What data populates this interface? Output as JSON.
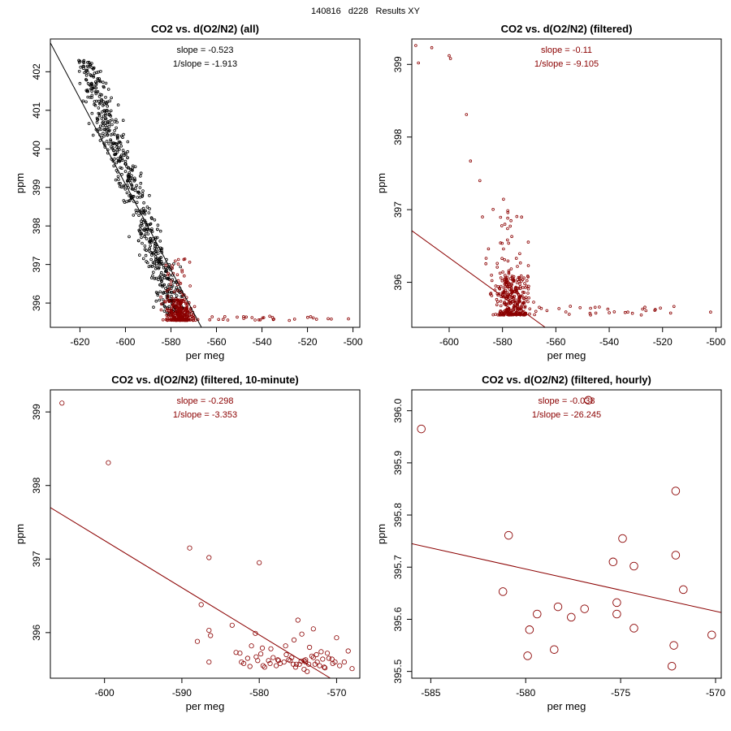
{
  "page_title": "140816   d228   Results XY",
  "colors": {
    "all": "#000000",
    "filtered": "#8b0000",
    "axes": "#000000"
  },
  "chart_data": [
    {
      "type": "scatter",
      "title": "CO2 vs. d(O2/N2) (all)",
      "xlabel": "per meg",
      "ylabel": "ppm",
      "xlim": [
        -633,
        -497
      ],
      "ylim": [
        395.37,
        402.85
      ],
      "xticks": [
        -620,
        -600,
        -580,
        -560,
        -540,
        -520,
        -500
      ],
      "yticks": [
        396,
        397,
        398,
        399,
        400,
        401,
        402
      ],
      "annotations": [
        "slope = -0.523",
        "1/slope = -1.913"
      ],
      "annotation_color": "#000000",
      "fit_line": {
        "x": [
          -633,
          -566.6
        ],
        "y": [
          402.75,
          395.37
        ],
        "color": "#000000"
      },
      "point_size": "small",
      "series": [
        {
          "name": "all",
          "color": "#000000",
          "generated": "dense_all",
          "count": 600
        },
        {
          "name": "filtered",
          "color": "#8b0000",
          "generated": "dense_filtered",
          "count": 320
        }
      ]
    },
    {
      "type": "scatter",
      "title": "CO2 vs. d(O2/N2) (filtered)",
      "xlabel": "per meg",
      "ylabel": "ppm",
      "xlim": [
        -614,
        -498
      ],
      "ylim": [
        395.38,
        399.35
      ],
      "xticks": [
        -600,
        -580,
        -560,
        -540,
        -520,
        -500
      ],
      "yticks": [
        396,
        397,
        398,
        399
      ],
      "annotations": [
        "slope = -0.11",
        "1/slope = -9.105"
      ],
      "annotation_color": "#8b0000",
      "fit_line": {
        "x": [
          -614,
          -564
        ],
        "y": [
          396.71,
          395.38
        ],
        "color": "#8b0000"
      },
      "point_size": "small",
      "series": [
        {
          "name": "filtered",
          "color": "#8b0000",
          "generated": "dense_filtered",
          "count": 380,
          "x": [
            -612.5,
            -611.5,
            -606.5,
            -600,
            -599.5,
            -593.5,
            -592,
            -588.5,
            -587.5
          ],
          "y": [
            399.26,
            399.02,
            399.23,
            399.12,
            399.08,
            398.31,
            397.67,
            397.4,
            396.9
          ]
        }
      ]
    },
    {
      "type": "scatter",
      "title": "CO2 vs. d(O2/N2) (filtered, 10-minute)",
      "xlabel": "per meg",
      "ylabel": "ppm",
      "xlim": [
        -607,
        -567
      ],
      "ylim": [
        395.38,
        399.3
      ],
      "xticks": [
        -600,
        -590,
        -580,
        -570
      ],
      "yticks": [
        396,
        397,
        398,
        399
      ],
      "annotations": [
        "slope = -0.298",
        "1/slope = -3.353"
      ],
      "annotation_color": "#8b0000",
      "fit_line": {
        "x": [
          -607,
          -570.8
        ],
        "y": [
          397.7,
          395.38
        ],
        "color": "#8b0000"
      },
      "point_size": "medium",
      "series": [
        {
          "name": "filtered, 10-minute",
          "color": "#8b0000",
          "x": [
            -605.5,
            -599.5,
            -589,
            -586.5,
            -580,
            -587.5,
            -588,
            -586.5,
            -586.3,
            -586.5,
            -583.5,
            -582.5,
            -581.5,
            -580.5,
            -579.5,
            -578.5,
            -577.5,
            -576.5,
            -575.5,
            -575,
            -574.5,
            -574,
            -573.5,
            -573,
            -572.5,
            -572,
            -571.5,
            -571,
            -570.5,
            -570,
            -569,
            -568.5,
            -568,
            -582,
            -581,
            -580.2,
            -579.3,
            -578.2,
            -577.3,
            -576.2,
            -575.2,
            -574.2,
            -573.2,
            -572.2,
            -571.2,
            -570.2,
            -579.8,
            -578.8,
            -577.8,
            -576.8,
            -575.8,
            -574.8,
            -573.8,
            -572.8,
            -571.8,
            -583,
            -582.3,
            -581.2,
            -580.4,
            -579.6,
            -578.6,
            -577.6,
            -576.6,
            -575.6,
            -574.6,
            -573.6,
            -572.6,
            -571.6,
            -570.6,
            -569.6,
            -576,
            -574,
            -573,
            -575.3,
            -574.2
          ],
          "y": [
            399.12,
            398.31,
            397.15,
            397.02,
            396.95,
            396.38,
            395.88,
            396.03,
            395.96,
            395.6,
            396.1,
            395.72,
            395.65,
            395.99,
            395.55,
            395.78,
            395.62,
            395.7,
            395.9,
            396.17,
            395.98,
            395.63,
            395.8,
            396.05,
            395.6,
            395.74,
            395.52,
            395.65,
            395.58,
            395.93,
            395.6,
            395.75,
            395.51,
            395.58,
            395.82,
            395.62,
            395.53,
            395.66,
            395.58,
            395.63,
            395.57,
            395.62,
            395.68,
            395.55,
            395.72,
            395.6,
            395.71,
            395.62,
            395.55,
            395.6,
            395.66,
            395.57,
            395.47,
            395.57,
            395.64,
            395.73,
            395.6,
            395.54,
            395.67,
            395.79,
            395.58,
            395.63,
            395.82,
            395.57,
            395.61,
            395.57,
            395.7,
            395.53,
            395.64,
            395.55,
            395.62,
            395.6,
            395.66,
            395.53,
            395.5
          ]
        }
      ]
    },
    {
      "type": "scatter",
      "title": "CO2 vs. d(O2/N2) (filtered, hourly)",
      "xlabel": "per meg",
      "ylabel": "ppm",
      "xlim": [
        -586,
        -569.7
      ],
      "ylim": [
        395.487,
        396.04
      ],
      "xticks": [
        -585,
        -580,
        -575,
        -570
      ],
      "yticks": [
        395.5,
        395.6,
        395.7,
        395.8,
        395.9,
        396.0
      ],
      "ytick_labels": [
        "395.5",
        "395.6",
        "395.7",
        "395.8",
        "395.9",
        "396.0"
      ],
      "annotations": [
        "slope = -0.038",
        "1/slope = -26.245"
      ],
      "annotation_color": "#8b0000",
      "fit_line": {
        "x": [
          -586,
          -569.7
        ],
        "y": [
          395.745,
          395.613
        ],
        "color": "#8b0000"
      },
      "point_size": "large",
      "series": [
        {
          "name": "filtered, hourly",
          "color": "#8b0000",
          "x": [
            -585.5,
            -576.7,
            -580.9,
            -581.2,
            -579.8,
            -579.9,
            -579.4,
            -578.3,
            -578.5,
            -577.6,
            -576.9,
            -575.4,
            -575.2,
            -575.2,
            -574.9,
            -574.3,
            -574.3,
            -572.3,
            -572.2,
            -572.1,
            -572.1,
            -571.7,
            -570.2
          ],
          "y": [
            395.965,
            396.02,
            395.761,
            395.653,
            395.58,
            395.53,
            395.61,
            395.624,
            395.542,
            395.604,
            395.62,
            395.71,
            395.632,
            395.61,
            395.755,
            395.702,
            395.583,
            395.51,
            395.55,
            395.846,
            395.723,
            395.657,
            395.57
          ]
        }
      ]
    }
  ]
}
